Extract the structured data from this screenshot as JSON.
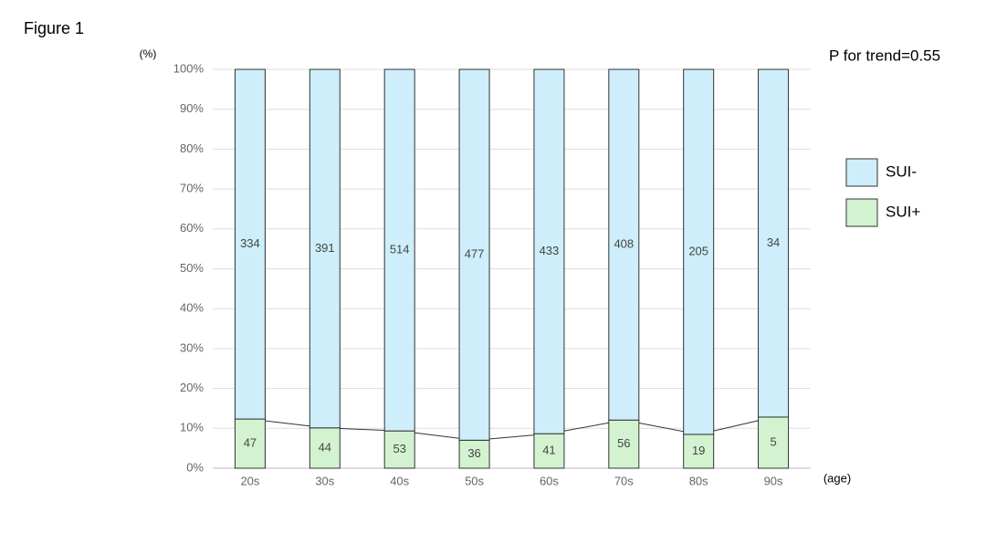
{
  "figure_label": "Figure 1",
  "chart_data": {
    "type": "bar",
    "stacking": "percent",
    "y_label": "(%)",
    "x_label": "(age)",
    "annotation": "P for trend=0.55",
    "categories": [
      "20s",
      "30s",
      "40s",
      "50s",
      "60s",
      "70s",
      "80s",
      "90s"
    ],
    "series": [
      {
        "name": "SUI+",
        "color": "#d3f3d0",
        "values": [
          47,
          44,
          53,
          36,
          41,
          56,
          19,
          5
        ]
      },
      {
        "name": "SUI-",
        "color": "#cdeefa",
        "values": [
          334,
          391,
          514,
          477,
          433,
          408,
          205,
          34
        ]
      }
    ],
    "trend_line": true,
    "ylim": [
      0,
      100
    ],
    "yticks": [
      {
        "value": 0,
        "label": "0%"
      },
      {
        "value": 10,
        "label": "10%"
      },
      {
        "value": 20,
        "label": "20%"
      },
      {
        "value": 30,
        "label": "30%"
      },
      {
        "value": 40,
        "label": "40%"
      },
      {
        "value": 50,
        "label": "50%"
      },
      {
        "value": 60,
        "label": "60%"
      },
      {
        "value": 70,
        "label": "70%"
      },
      {
        "value": 80,
        "label": "80%"
      },
      {
        "value": 90,
        "label": "90%"
      },
      {
        "value": 100,
        "label": "100%"
      }
    ],
    "grid": true,
    "legend": "right"
  }
}
